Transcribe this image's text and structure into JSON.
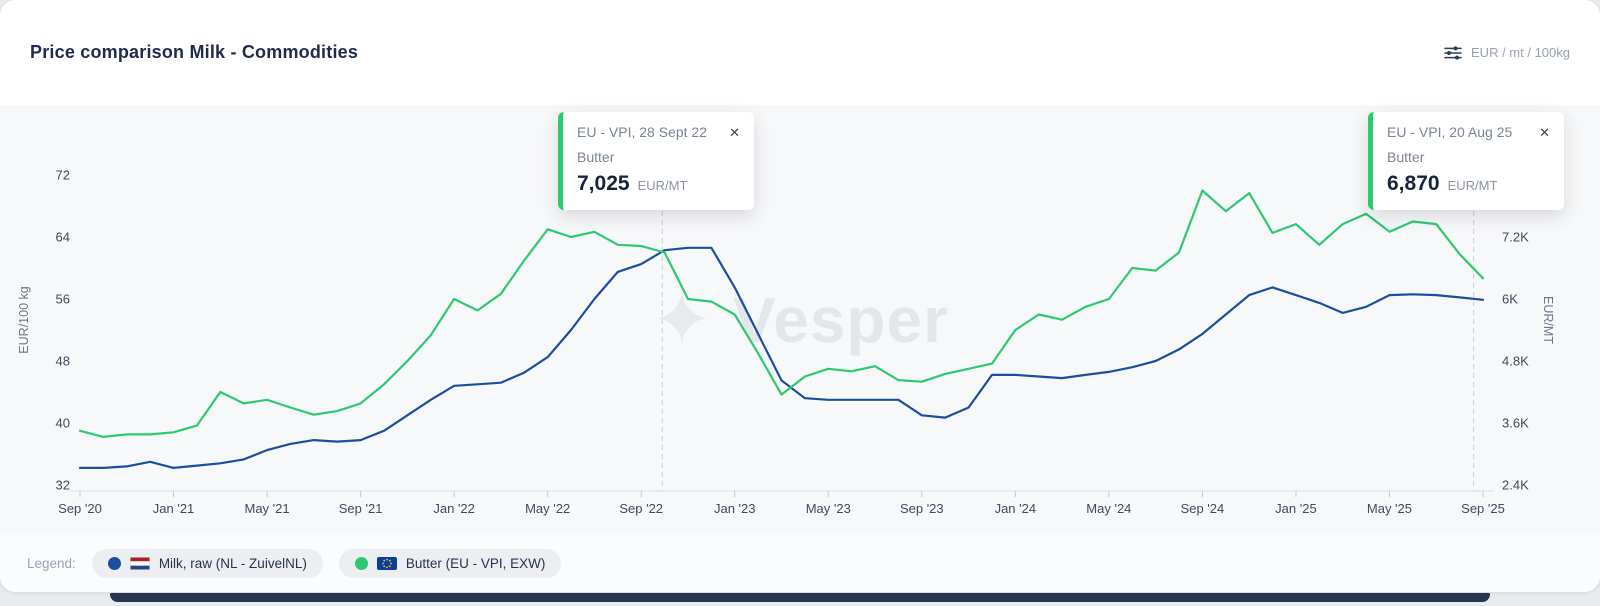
{
  "header": {
    "title": "Price comparison Milk - Commodities",
    "unit_selector": "EUR / mt / 100kg"
  },
  "icons": {
    "watermark_star": "✦",
    "close": "✕"
  },
  "watermark": "Vesper",
  "tooltips": [
    {
      "source": "EU - VPI, 28 Sept 22",
      "product": "Butter",
      "value": "7,025",
      "unit": "EUR/MT",
      "accent_color": "#2dc96f",
      "anchor_index": 24.9
    },
    {
      "source": "EU - VPI, 20 Aug 25",
      "product": "Butter",
      "value": "6,870",
      "unit": "EUR/MT",
      "accent_color": "#2dc96f",
      "anchor_index": 59.6
    }
  ],
  "legend": {
    "label": "Legend:",
    "items": [
      {
        "label": "Milk, raw (NL - ZuivelNL)",
        "color": "#1b4f9e",
        "flag": "nl"
      },
      {
        "label": "Butter (EU - VPI, EXW)",
        "color": "#2dc96f",
        "flag": "eu"
      }
    ]
  },
  "chart_data": {
    "type": "line",
    "title": "Price comparison Milk - Commodities",
    "x_categories": [
      "Sep '20",
      "Oct '20",
      "Nov '20",
      "Dec '20",
      "Jan '21",
      "Feb '21",
      "Mar '21",
      "Apr '21",
      "May '21",
      "Jun '21",
      "Jul '21",
      "Aug '21",
      "Sep '21",
      "Oct '21",
      "Nov '21",
      "Dec '21",
      "Jan '22",
      "Feb '22",
      "Mar '22",
      "Apr '22",
      "May '22",
      "Jun '22",
      "Jul '22",
      "Aug '22",
      "Sep '22",
      "Oct '22",
      "Nov '22",
      "Dec '22",
      "Jan '23",
      "Feb '23",
      "Mar '23",
      "Apr '23",
      "May '23",
      "Jun '23",
      "Jul '23",
      "Aug '23",
      "Sep '23",
      "Oct '23",
      "Nov '23",
      "Dec '23",
      "Jan '24",
      "Feb '24",
      "Mar '24",
      "Apr '24",
      "May '24",
      "Jun '24",
      "Jul '24",
      "Aug '24",
      "Sep '24",
      "Oct '24",
      "Nov '24",
      "Dec '24",
      "Jan '25",
      "Feb '25",
      "Mar '25",
      "Apr '25",
      "May '25",
      "Jun '25",
      "Jul '25",
      "Aug '25",
      "Sep '25"
    ],
    "x_tick_every": 4,
    "left_axis": {
      "label": "EUR/100 kg",
      "range": [
        32,
        72
      ],
      "ticks": [
        72,
        64,
        56,
        48,
        40,
        32
      ]
    },
    "right_axis": {
      "label": "EUR/MT",
      "range": [
        2400,
        7200
      ],
      "ticks": [
        {
          "label": "7.2K",
          "value": 7200
        },
        {
          "label": "6K",
          "value": 6000
        },
        {
          "label": "4.8K",
          "value": 4800
        },
        {
          "label": "3.6K",
          "value": 3600
        },
        {
          "label": "2.4K",
          "value": 2400
        }
      ]
    },
    "grid": false,
    "legend_position": "bottom",
    "series": [
      {
        "name": "Milk, raw (NL - ZuivelNL)",
        "axis": "left",
        "unit": "EUR/100 kg",
        "color": "#1b4f9e",
        "values": [
          34.2,
          34.2,
          34.4,
          35.0,
          34.2,
          34.5,
          34.8,
          35.3,
          36.5,
          37.3,
          37.8,
          37.6,
          37.8,
          39.0,
          41.0,
          43.0,
          44.8,
          45.0,
          45.2,
          46.5,
          48.5,
          52.0,
          56.0,
          59.5,
          60.5,
          62.3,
          62.6,
          62.6,
          57.5,
          51.5,
          45.5,
          43.2,
          43.0,
          43.0,
          43.0,
          43.0,
          41.0,
          40.7,
          42.0,
          46.2,
          46.2,
          46.0,
          45.8,
          46.2,
          46.6,
          47.2,
          48.0,
          49.5,
          51.5,
          54.0,
          56.5,
          57.5,
          56.5,
          55.5,
          54.2,
          55.0,
          56.5,
          56.6,
          56.5,
          56.2,
          55.9
        ]
      },
      {
        "name": "Butter (EU - VPI, EXW)",
        "axis": "right",
        "unit": "EUR/MT",
        "color": "#2dc96f",
        "values": [
          3450,
          3330,
          3380,
          3380,
          3420,
          3550,
          4200,
          3980,
          4050,
          3900,
          3760,
          3830,
          3980,
          4350,
          4800,
          5300,
          6000,
          5780,
          6100,
          6750,
          7350,
          7200,
          7300,
          7050,
          7025,
          6900,
          6000,
          5950,
          5700,
          4950,
          4150,
          4500,
          4650,
          4600,
          4700,
          4430,
          4400,
          4550,
          4650,
          4750,
          5400,
          5700,
          5600,
          5850,
          6000,
          6600,
          6550,
          6900,
          8100,
          7700,
          8050,
          7280,
          7450,
          7050,
          7450,
          7650,
          7300,
          7500,
          7450,
          6870,
          6400
        ]
      }
    ]
  }
}
